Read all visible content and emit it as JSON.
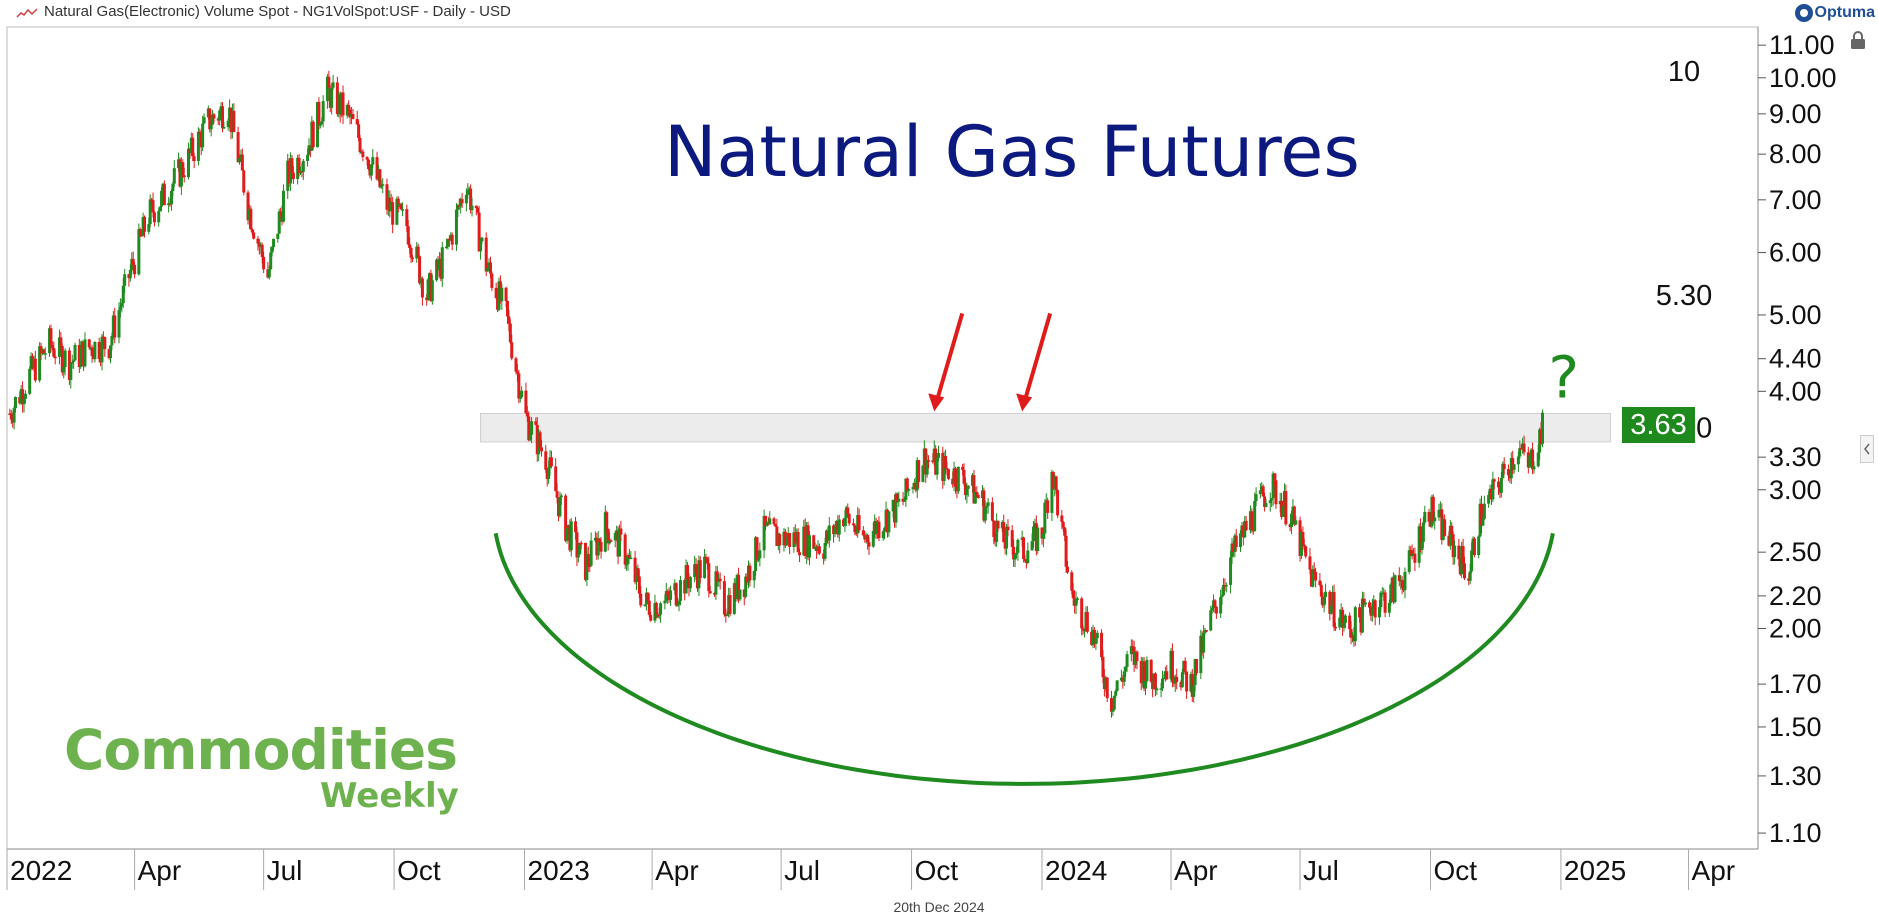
{
  "header": {
    "title": "Natural Gas(Electronic) Volume Spot - NG1VolSpot:USF - Daily - USD",
    "brand_logo": "Optuma",
    "lock_icon": "lock-icon"
  },
  "footer": {
    "date": "20th Dec 2024"
  },
  "brand_watermark": {
    "line1": "Commodities",
    "line2": "Weekly"
  },
  "chart_data": {
    "type": "candlestick",
    "title": "Natural Gas Futures",
    "y_scale": "log",
    "y_ticks": [
      "11.00",
      "10.00",
      "9.00",
      "8.00",
      "7.00",
      "6.00",
      "5.00",
      "4.40",
      "4.00",
      "3.30",
      "3.00",
      "2.50",
      "2.20",
      "2.00",
      "1.70",
      "1.50",
      "1.30",
      "1.10"
    ],
    "y_tick_values": [
      11.0,
      10.0,
      9.0,
      8.0,
      7.0,
      6.0,
      5.0,
      4.4,
      4.0,
      3.3,
      3.0,
      2.5,
      2.2,
      2.0,
      1.7,
      1.5,
      1.3,
      1.1
    ],
    "x_ticks": [
      {
        "label": "2022",
        "date": "2022-01-01"
      },
      {
        "label": "Apr",
        "date": "2022-04-01"
      },
      {
        "label": "Jul",
        "date": "2022-07-01"
      },
      {
        "label": "Oct",
        "date": "2022-10-01"
      },
      {
        "label": "2023",
        "date": "2023-01-01"
      },
      {
        "label": "Apr",
        "date": "2023-04-01"
      },
      {
        "label": "Jul",
        "date": "2023-07-01"
      },
      {
        "label": "Oct",
        "date": "2023-10-01"
      },
      {
        "label": "2024",
        "date": "2024-01-01"
      },
      {
        "label": "Apr",
        "date": "2024-04-01"
      },
      {
        "label": "Jul",
        "date": "2024-07-01"
      },
      {
        "label": "Oct",
        "date": "2024-10-01"
      },
      {
        "label": "2025",
        "date": "2025-01-01"
      },
      {
        "label": "Apr",
        "date": "2025-04-01"
      }
    ],
    "x_range": [
      "2022-01-01",
      "2025-05-20"
    ],
    "y_range": [
      1.05,
      11.6
    ],
    "last_price": "3.63",
    "up_color": "#1f8a1f",
    "down_color": "#e01b1b",
    "series": [
      {
        "date": "2022-01-03",
        "close": 3.75
      },
      {
        "date": "2022-01-17",
        "close": 4.2
      },
      {
        "date": "2022-01-31",
        "close": 4.6
      },
      {
        "date": "2022-02-14",
        "close": 4.35
      },
      {
        "date": "2022-02-28",
        "close": 4.55
      },
      {
        "date": "2022-03-14",
        "close": 4.6
      },
      {
        "date": "2022-03-28",
        "close": 5.6
      },
      {
        "date": "2022-04-11",
        "close": 6.7
      },
      {
        "date": "2022-04-25",
        "close": 7.2
      },
      {
        "date": "2022-05-09",
        "close": 7.9
      },
      {
        "date": "2022-05-23",
        "close": 8.8
      },
      {
        "date": "2022-06-06",
        "close": 9.2
      },
      {
        "date": "2022-06-20",
        "close": 6.9
      },
      {
        "date": "2022-07-04",
        "close": 5.6
      },
      {
        "date": "2022-07-18",
        "close": 7.5
      },
      {
        "date": "2022-08-01",
        "close": 8.2
      },
      {
        "date": "2022-08-15",
        "close": 9.6
      },
      {
        "date": "2022-08-29",
        "close": 9.0
      },
      {
        "date": "2022-09-12",
        "close": 8.0
      },
      {
        "date": "2022-09-26",
        "close": 6.9
      },
      {
        "date": "2022-10-10",
        "close": 6.5
      },
      {
        "date": "2022-10-24",
        "close": 5.3
      },
      {
        "date": "2022-11-07",
        "close": 6.0
      },
      {
        "date": "2022-11-21",
        "close": 7.4
      },
      {
        "date": "2022-12-05",
        "close": 5.8
      },
      {
        "date": "2022-12-19",
        "close": 5.0
      },
      {
        "date": "2023-01-02",
        "close": 3.7
      },
      {
        "date": "2023-01-16",
        "close": 3.3
      },
      {
        "date": "2023-01-30",
        "close": 2.7
      },
      {
        "date": "2023-02-13",
        "close": 2.4
      },
      {
        "date": "2023-02-27",
        "close": 2.7
      },
      {
        "date": "2023-03-13",
        "close": 2.5
      },
      {
        "date": "2023-03-27",
        "close": 2.15
      },
      {
        "date": "2023-04-10",
        "close": 2.15
      },
      {
        "date": "2023-04-24",
        "close": 2.3
      },
      {
        "date": "2023-05-08",
        "close": 2.4
      },
      {
        "date": "2023-05-22",
        "close": 2.15
      },
      {
        "date": "2023-06-05",
        "close": 2.3
      },
      {
        "date": "2023-06-19",
        "close": 2.65
      },
      {
        "date": "2023-07-03",
        "close": 2.6
      },
      {
        "date": "2023-07-17",
        "close": 2.6
      },
      {
        "date": "2023-07-31",
        "close": 2.55
      },
      {
        "date": "2023-08-14",
        "close": 2.8
      },
      {
        "date": "2023-08-28",
        "close": 2.6
      },
      {
        "date": "2023-09-11",
        "close": 2.75
      },
      {
        "date": "2023-09-25",
        "close": 2.9
      },
      {
        "date": "2023-10-09",
        "close": 3.3
      },
      {
        "date": "2023-10-23",
        "close": 3.2
      },
      {
        "date": "2023-11-06",
        "close": 3.1
      },
      {
        "date": "2023-11-20",
        "close": 2.9
      },
      {
        "date": "2023-12-04",
        "close": 2.6
      },
      {
        "date": "2023-12-18",
        "close": 2.5
      },
      {
        "date": "2024-01-01",
        "close": 2.65
      },
      {
        "date": "2024-01-08",
        "close": 3.2
      },
      {
        "date": "2024-01-22",
        "close": 2.2
      },
      {
        "date": "2024-02-05",
        "close": 2.0
      },
      {
        "date": "2024-02-19",
        "close": 1.62
      },
      {
        "date": "2024-03-04",
        "close": 1.85
      },
      {
        "date": "2024-03-18",
        "close": 1.72
      },
      {
        "date": "2024-04-01",
        "close": 1.8
      },
      {
        "date": "2024-04-15",
        "close": 1.7
      },
      {
        "date": "2024-04-29",
        "close": 2.05
      },
      {
        "date": "2024-05-13",
        "close": 2.45
      },
      {
        "date": "2024-05-27",
        "close": 2.75
      },
      {
        "date": "2024-06-10",
        "close": 3.05
      },
      {
        "date": "2024-06-24",
        "close": 2.8
      },
      {
        "date": "2024-07-08",
        "close": 2.35
      },
      {
        "date": "2024-07-22",
        "close": 2.15
      },
      {
        "date": "2024-08-05",
        "close": 1.98
      },
      {
        "date": "2024-08-19",
        "close": 2.15
      },
      {
        "date": "2024-09-02",
        "close": 2.2
      },
      {
        "date": "2024-09-16",
        "close": 2.4
      },
      {
        "date": "2024-09-30",
        "close": 2.85
      },
      {
        "date": "2024-10-14",
        "close": 2.6
      },
      {
        "date": "2024-10-28",
        "close": 2.35
      },
      {
        "date": "2024-11-04",
        "close": 2.75
      },
      {
        "date": "2024-11-18",
        "close": 3.05
      },
      {
        "date": "2024-12-02",
        "close": 3.4
      },
      {
        "date": "2024-12-09",
        "close": 3.2
      },
      {
        "date": "2024-12-20",
        "close": 3.63
      }
    ],
    "resistance_band": {
      "low": 3.45,
      "high": 3.75,
      "label": "3.60",
      "start": "2022-12-01",
      "end": "2025-02-05"
    },
    "annotations": [
      {
        "type": "level",
        "text": "10",
        "value": 10.2
      },
      {
        "type": "level",
        "text": "5.30",
        "value": 5.3
      },
      {
        "type": "level",
        "text": "3.60",
        "value": 3.6
      },
      {
        "type": "arrow",
        "date": "2023-10-17",
        "value": 3.75,
        "color": "#e01b1b"
      },
      {
        "type": "arrow",
        "date": "2023-12-18",
        "value": 3.75,
        "color": "#e01b1b"
      },
      {
        "type": "question",
        "text": "?",
        "date": "2024-12-27",
        "value": 3.95,
        "color": "#1f8a1f"
      },
      {
        "type": "arc",
        "start": "2022-12-10",
        "end": "2024-12-28",
        "top_value": 2.85,
        "bottom_value": 1.27,
        "color": "#1f8a1f"
      }
    ]
  }
}
